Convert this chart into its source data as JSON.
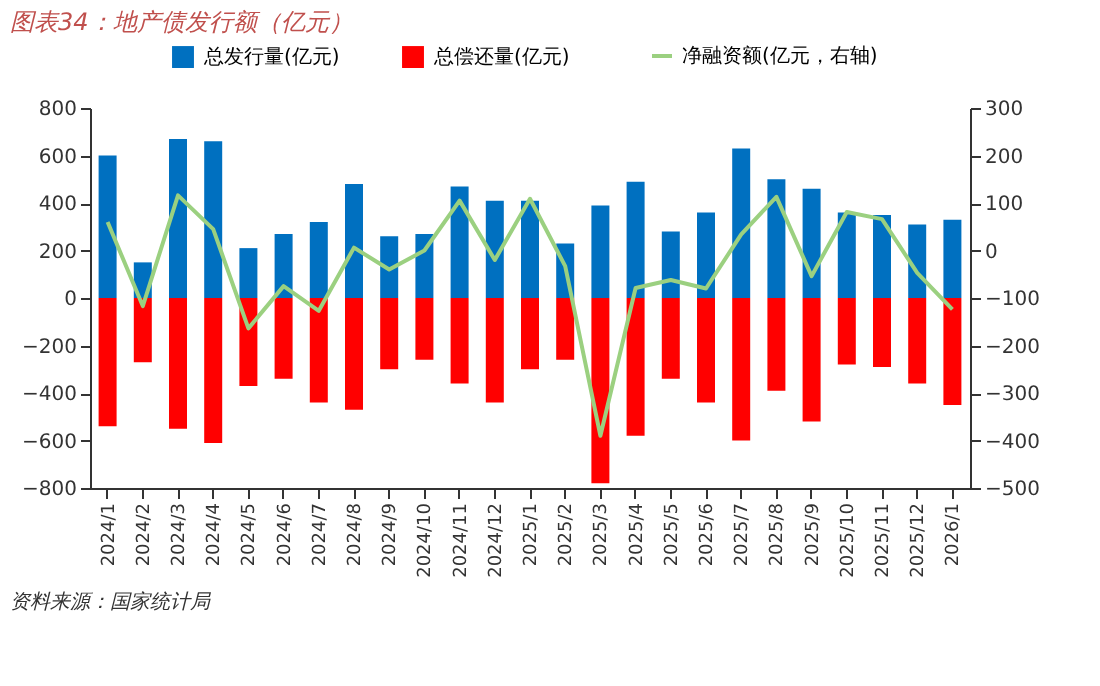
{
  "chart_data": {
    "type": "bar",
    "title": "图表34：地产债发行额（亿元）",
    "categories": [
      "2024/1",
      "2024/2",
      "2024/3",
      "2024/4",
      "2024/5",
      "2024/6",
      "2024/7",
      "2024/8",
      "2024/9",
      "2024/10",
      "2024/11",
      "2024/12",
      "2025/1",
      "2025/2",
      "2025/3",
      "2025/4",
      "2025/5",
      "2025/6",
      "2025/7",
      "2025/8",
      "2025/9",
      "2025/10",
      "2025/11",
      "2025/12",
      "2026/1"
    ],
    "series": [
      {
        "name": "总发行量(亿元)",
        "color": "#0070c0",
        "values": [
          600,
          150,
          670,
          660,
          210,
          270,
          320,
          480,
          260,
          270,
          470,
          410,
          410,
          230,
          390,
          490,
          280,
          360,
          630,
          500,
          460,
          360,
          350,
          310,
          330
        ]
      },
      {
        "name": "总偿还量(亿元)",
        "color": "#ff0000",
        "values": [
          -540,
          -270,
          -550,
          -610,
          -370,
          -340,
          -440,
          -470,
          -300,
          -260,
          -360,
          -440,
          -300,
          -260,
          -780,
          -580,
          -340,
          -440,
          -600,
          -390,
          -520,
          -280,
          -290,
          -360,
          -450
        ]
      },
      {
        "name": "净融资额(亿元，右轴)",
        "type": "line",
        "axis": "y2",
        "color": "#9bd080",
        "values": [
          60,
          -117,
          116,
          45,
          -164,
          -75,
          -127,
          6,
          -40,
          0,
          105,
          -20,
          109,
          -33,
          -390,
          -79,
          -62,
          -80,
          34,
          113,
          -54,
          81,
          66,
          -47,
          -124
        ]
      }
    ],
    "ylim": [
      -800,
      800
    ],
    "yticks": [
      -800,
      -600,
      -400,
      -200,
      0,
      200,
      400,
      600,
      800
    ],
    "y2lim": [
      -500,
      300
    ],
    "y2ticks": [
      -500,
      -400,
      -300,
      -200,
      -100,
      0,
      100,
      200,
      300
    ],
    "stacked": true,
    "legend": "top",
    "grid": false,
    "marker": "none",
    "line_style": "solid",
    "annotations": [
      "资料来源：国家统计局"
    ]
  }
}
